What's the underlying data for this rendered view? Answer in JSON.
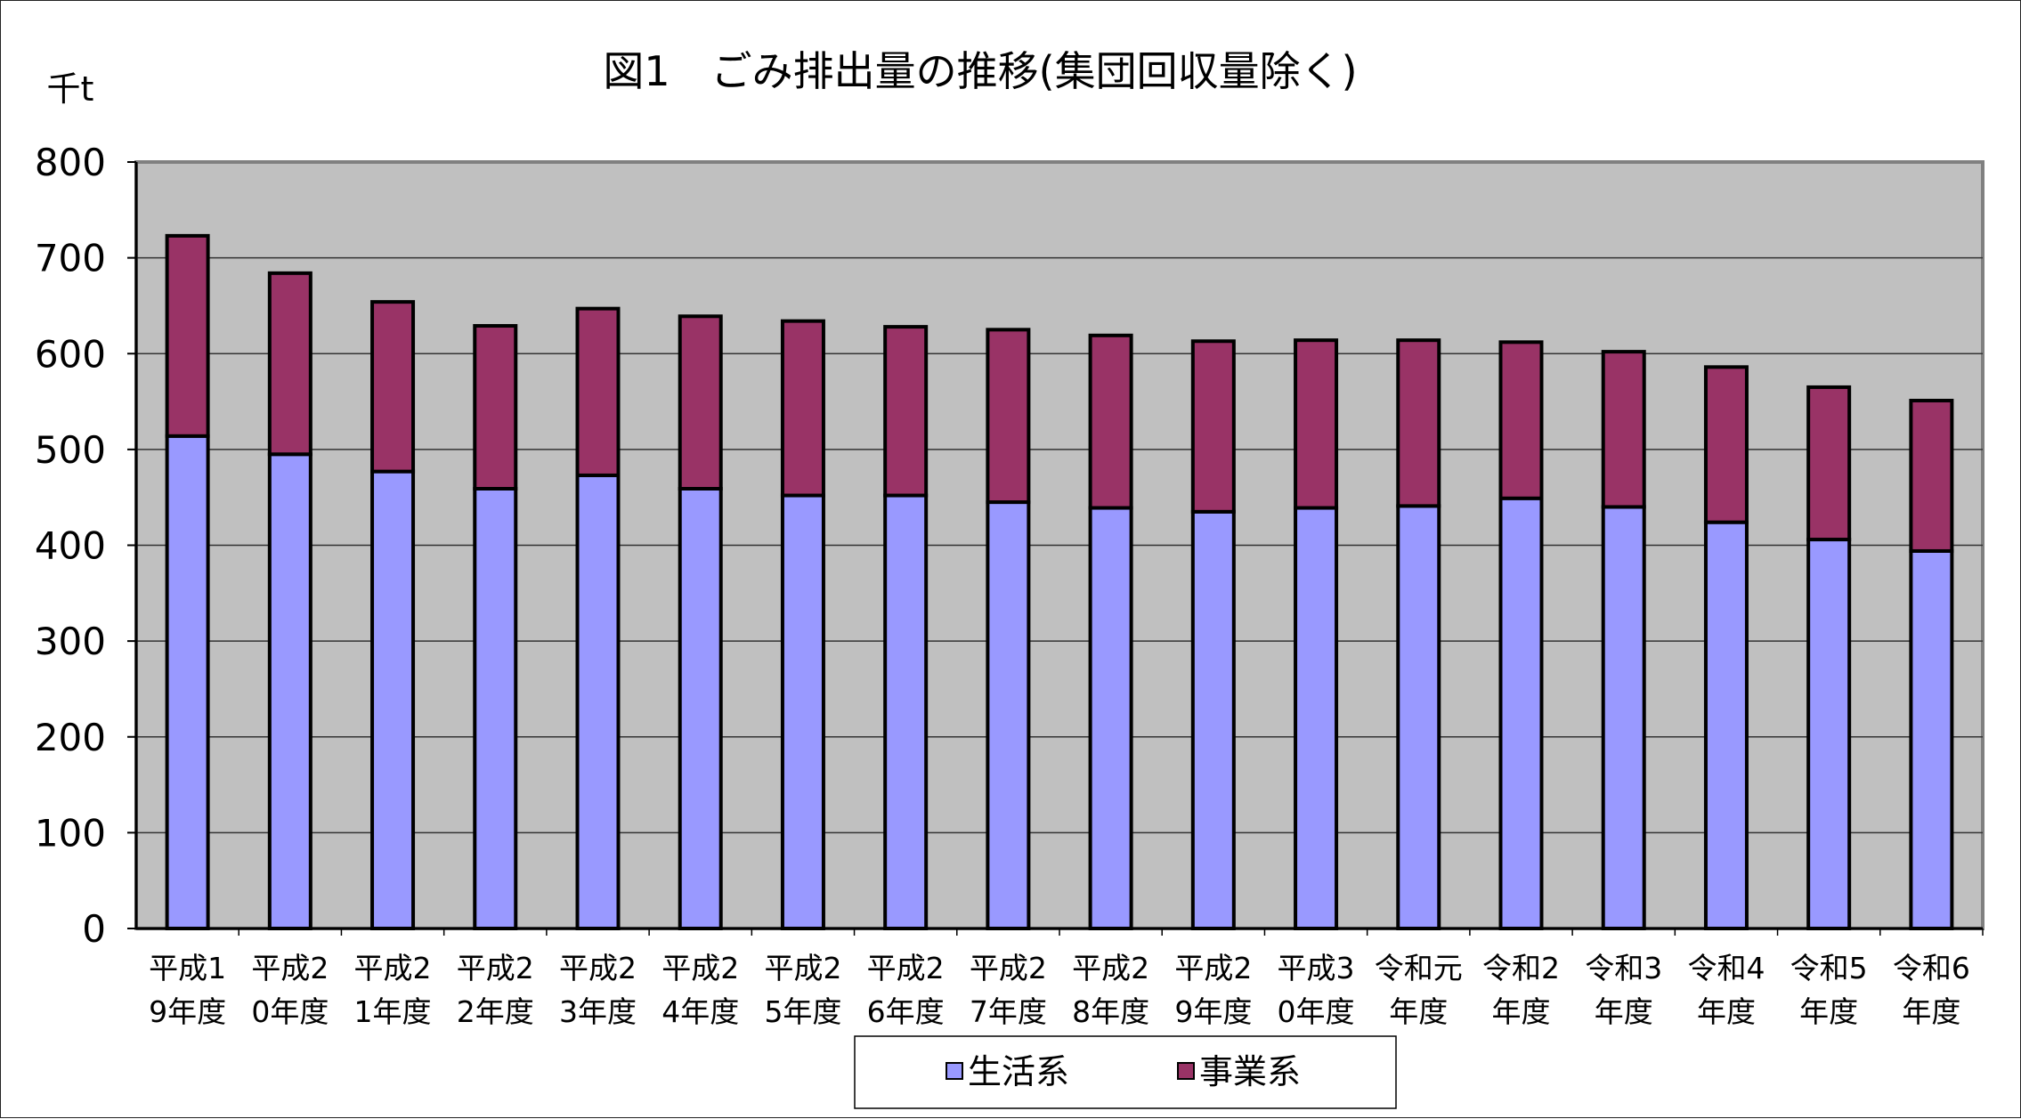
{
  "chart_data": {
    "type": "bar",
    "stacked": true,
    "title": "図1　ごみ排出量の推移(集団回収量除く)",
    "ylabel": "千t",
    "xlabel": "",
    "ylim": [
      0,
      800
    ],
    "yticks": [
      0,
      100,
      200,
      300,
      400,
      500,
      600,
      700,
      800
    ],
    "grid": true,
    "legend_position": "bottom",
    "categories": [
      [
        "平成1",
        "9年度"
      ],
      [
        "平成2",
        "0年度"
      ],
      [
        "平成2",
        "1年度"
      ],
      [
        "平成2",
        "2年度"
      ],
      [
        "平成2",
        "3年度"
      ],
      [
        "平成2",
        "4年度"
      ],
      [
        "平成2",
        "5年度"
      ],
      [
        "平成2",
        "6年度"
      ],
      [
        "平成2",
        "7年度"
      ],
      [
        "平成2",
        "8年度"
      ],
      [
        "平成2",
        "9年度"
      ],
      [
        "平成3",
        "0年度"
      ],
      [
        "令和元",
        "年度"
      ],
      [
        "令和2",
        "年度"
      ],
      [
        "令和3",
        "年度"
      ],
      [
        "令和4",
        "年度"
      ],
      [
        "令和5",
        "年度"
      ],
      [
        "令和6",
        "年度"
      ]
    ],
    "series": [
      {
        "name": "生活系",
        "color": "#9999ff",
        "values": [
          514,
          495,
          477,
          459,
          473,
          459,
          452,
          452,
          445,
          439,
          435,
          439,
          441,
          449,
          440,
          424,
          406,
          394
        ]
      },
      {
        "name": "事業系",
        "color": "#993366",
        "values": [
          209,
          189,
          177,
          170,
          174,
          180,
          182,
          176,
          180,
          180,
          178,
          175,
          173,
          163,
          162,
          162,
          159,
          157
        ]
      }
    ],
    "plot_background": "#c0c0c0",
    "gridline_color": "#333333"
  }
}
